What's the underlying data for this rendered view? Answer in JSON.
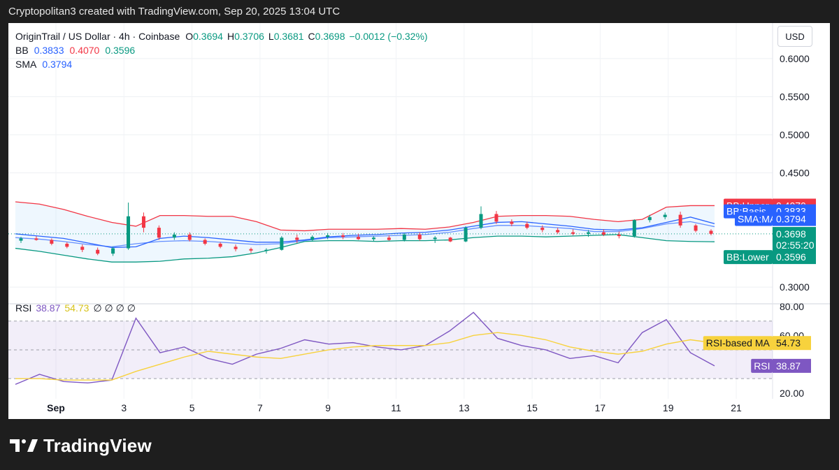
{
  "caption": "Cryptopolitan3 created with TradingView.com, Sep 20, 2025 13:04 UTC",
  "brand": {
    "name": "TradingView"
  },
  "currency_button": "USD",
  "legend": {
    "symbol": "OriginTrail / US Dollar · 4h · Coinbase",
    "ohlc": [
      {
        "k": "O",
        "v": "0.3694"
      },
      {
        "k": "H",
        "v": "0.3706"
      },
      {
        "k": "L",
        "v": "0.3681"
      },
      {
        "k": "C",
        "v": "0.3698"
      }
    ],
    "change": "−0.0012 (−0.32%)",
    "bb_label": "BB",
    "bb_values": [
      "0.3833",
      "0.4070",
      "0.3596"
    ],
    "sma_label": "SMA",
    "sma_value": "0.3794",
    "rsi_label": "RSI",
    "rsi_values": [
      "38.87",
      "54.73"
    ],
    "rsi_extra": "∅ ∅ ∅ ∅"
  },
  "price_tags": [
    {
      "label": "BB:Upper",
      "value": "0.4070",
      "color": "#f23645"
    },
    {
      "label": "BB:Basis",
      "value": "0.3833",
      "color": "#2962ff"
    },
    {
      "label": "SMA:MA",
      "value": "0.3794",
      "color": "#2962ff"
    },
    {
      "label": "",
      "value": "0.3698",
      "sub": "02:55:20",
      "color": "#089981"
    },
    {
      "label": "BB:Lower",
      "value": "0.3596",
      "color": "#089981"
    }
  ],
  "rsi_tags": [
    {
      "label": "RSI-based MA",
      "value": "54.73",
      "color": "#f7d23d",
      "text": "#131722"
    },
    {
      "label": "RSI",
      "value": "38.87",
      "color": "#7e57c2",
      "text": "#ffffff"
    }
  ],
  "colors": {
    "up": "#089981",
    "down": "#f23645",
    "bb_upper": "#f23645",
    "bb_basis": "#2962ff",
    "bb_lower": "#089981",
    "sma": "#2962ff",
    "rsi": "#7e57c2",
    "rsi_ma": "#f7d23d"
  },
  "chart_data": {
    "type": "candlestick",
    "price_axis": {
      "ticks": [
        "0.6000",
        "0.5500",
        "0.5000",
        "0.4500",
        "0.3000"
      ],
      "range": [
        0.28,
        0.61
      ]
    },
    "rsi_axis": {
      "ticks": [
        "80.00",
        "60.00",
        "20.00"
      ],
      "range": [
        16,
        82
      ],
      "bands": [
        70,
        50,
        30
      ]
    },
    "x_axis": {
      "ticks": [
        "Sep",
        "3",
        "5",
        "7",
        "9",
        "11",
        "13",
        "15",
        "17",
        "19",
        "21"
      ]
    },
    "series": [
      {
        "name": "BB:Upper",
        "points": [
          [
            0,
            0.412
          ],
          [
            1,
            0.409
          ],
          [
            2,
            0.402
          ],
          [
            3,
            0.393
          ],
          [
            4,
            0.385
          ],
          [
            5,
            0.38
          ],
          [
            6,
            0.394
          ],
          [
            7,
            0.394
          ],
          [
            8,
            0.393
          ],
          [
            9,
            0.393
          ],
          [
            10,
            0.386
          ],
          [
            11,
            0.375
          ],
          [
            12,
            0.374
          ],
          [
            13,
            0.376
          ],
          [
            14,
            0.376
          ],
          [
            15,
            0.376
          ],
          [
            16,
            0.377
          ],
          [
            17,
            0.376
          ],
          [
            18,
            0.379
          ],
          [
            19,
            0.385
          ],
          [
            20,
            0.393
          ],
          [
            21,
            0.394
          ],
          [
            22,
            0.394
          ],
          [
            23,
            0.393
          ],
          [
            24,
            0.389
          ],
          [
            25,
            0.386
          ],
          [
            26,
            0.389
          ],
          [
            27,
            0.405
          ],
          [
            28,
            0.407
          ],
          [
            29,
            0.407
          ]
        ]
      },
      {
        "name": "BB:Basis",
        "points": [
          [
            0,
            0.37
          ],
          [
            1,
            0.367
          ],
          [
            2,
            0.364
          ],
          [
            3,
            0.358
          ],
          [
            4,
            0.352
          ],
          [
            5,
            0.353
          ],
          [
            6,
            0.364
          ],
          [
            7,
            0.367
          ],
          [
            8,
            0.365
          ],
          [
            9,
            0.362
          ],
          [
            10,
            0.359
          ],
          [
            11,
            0.359
          ],
          [
            12,
            0.362
          ],
          [
            13,
            0.366
          ],
          [
            14,
            0.368
          ],
          [
            15,
            0.369
          ],
          [
            16,
            0.371
          ],
          [
            17,
            0.372
          ],
          [
            18,
            0.375
          ],
          [
            19,
            0.38
          ],
          [
            20,
            0.385
          ],
          [
            21,
            0.386
          ],
          [
            22,
            0.383
          ],
          [
            23,
            0.38
          ],
          [
            24,
            0.376
          ],
          [
            25,
            0.375
          ],
          [
            26,
            0.378
          ],
          [
            27,
            0.385
          ],
          [
            28,
            0.392
          ],
          [
            29,
            0.3833
          ]
        ]
      },
      {
        "name": "BB:Lower",
        "points": [
          [
            0,
            0.351
          ],
          [
            1,
            0.347
          ],
          [
            2,
            0.342
          ],
          [
            3,
            0.337
          ],
          [
            4,
            0.333
          ],
          [
            5,
            0.333
          ],
          [
            6,
            0.334
          ],
          [
            7,
            0.337
          ],
          [
            8,
            0.338
          ],
          [
            9,
            0.34
          ],
          [
            10,
            0.345
          ],
          [
            11,
            0.352
          ],
          [
            12,
            0.36
          ],
          [
            13,
            0.361
          ],
          [
            14,
            0.361
          ],
          [
            15,
            0.36
          ],
          [
            16,
            0.361
          ],
          [
            17,
            0.361
          ],
          [
            18,
            0.362
          ],
          [
            19,
            0.365
          ],
          [
            20,
            0.367
          ],
          [
            21,
            0.367
          ],
          [
            22,
            0.366
          ],
          [
            23,
            0.367
          ],
          [
            24,
            0.368
          ],
          [
            25,
            0.369
          ],
          [
            26,
            0.365
          ],
          [
            27,
            0.361
          ],
          [
            28,
            0.36
          ],
          [
            29,
            0.3596
          ]
        ]
      },
      {
        "name": "SMA:MA",
        "points": [
          [
            0,
            0.365
          ],
          [
            1,
            0.363
          ],
          [
            2,
            0.36
          ],
          [
            3,
            0.356
          ],
          [
            4,
            0.353
          ],
          [
            5,
            0.357
          ],
          [
            6,
            0.36
          ],
          [
            7,
            0.361
          ],
          [
            8,
            0.36
          ],
          [
            9,
            0.358
          ],
          [
            10,
            0.356
          ],
          [
            11,
            0.357
          ],
          [
            12,
            0.361
          ],
          [
            13,
            0.365
          ],
          [
            14,
            0.366
          ],
          [
            15,
            0.367
          ],
          [
            16,
            0.368
          ],
          [
            17,
            0.369
          ],
          [
            18,
            0.372
          ],
          [
            19,
            0.377
          ],
          [
            20,
            0.381
          ],
          [
            21,
            0.381
          ],
          [
            22,
            0.379
          ],
          [
            23,
            0.377
          ],
          [
            24,
            0.373
          ],
          [
            25,
            0.373
          ],
          [
            26,
            0.377
          ],
          [
            27,
            0.383
          ],
          [
            28,
            0.386
          ],
          [
            29,
            0.3794
          ]
        ]
      },
      {
        "name": "RSI",
        "points": [
          [
            0,
            26
          ],
          [
            1,
            33
          ],
          [
            2,
            28
          ],
          [
            3,
            27
          ],
          [
            4,
            29
          ],
          [
            5,
            72
          ],
          [
            6,
            48
          ],
          [
            7,
            52
          ],
          [
            8,
            44
          ],
          [
            9,
            40
          ],
          [
            10,
            47
          ],
          [
            11,
            51
          ],
          [
            12,
            57
          ],
          [
            13,
            54
          ],
          [
            14,
            55
          ],
          [
            15,
            52
          ],
          [
            16,
            50
          ],
          [
            17,
            53
          ],
          [
            18,
            63
          ],
          [
            19,
            76
          ],
          [
            20,
            58
          ],
          [
            21,
            53
          ],
          [
            22,
            50
          ],
          [
            23,
            44
          ],
          [
            24,
            46
          ],
          [
            25,
            41
          ],
          [
            26,
            62
          ],
          [
            27,
            71
          ],
          [
            28,
            48
          ],
          [
            29,
            38.87
          ]
        ]
      },
      {
        "name": "RSI-based MA",
        "points": [
          [
            0,
            30
          ],
          [
            1,
            30
          ],
          [
            2,
            29
          ],
          [
            3,
            29
          ],
          [
            4,
            29
          ],
          [
            5,
            35
          ],
          [
            6,
            40
          ],
          [
            7,
            45
          ],
          [
            8,
            49
          ],
          [
            9,
            47
          ],
          [
            10,
            45
          ],
          [
            11,
            44
          ],
          [
            12,
            47
          ],
          [
            13,
            50
          ],
          [
            14,
            52
          ],
          [
            15,
            53
          ],
          [
            16,
            53
          ],
          [
            17,
            53
          ],
          [
            18,
            55
          ],
          [
            19,
            60
          ],
          [
            20,
            62
          ],
          [
            21,
            60
          ],
          [
            22,
            57
          ],
          [
            23,
            52
          ],
          [
            24,
            49
          ],
          [
            25,
            47
          ],
          [
            26,
            49
          ],
          [
            27,
            54
          ],
          [
            28,
            57
          ],
          [
            29,
            54.73
          ]
        ]
      }
    ],
    "candles": [
      [
        0.361,
        0.366,
        0.358,
        0.364
      ],
      [
        0.364,
        0.367,
        0.361,
        0.362
      ],
      [
        0.362,
        0.364,
        0.355,
        0.357
      ],
      [
        0.357,
        0.359,
        0.351,
        0.353
      ],
      [
        0.353,
        0.356,
        0.346,
        0.349
      ],
      [
        0.349,
        0.352,
        0.342,
        0.344
      ],
      [
        0.344,
        0.353,
        0.341,
        0.351
      ],
      [
        0.351,
        0.411,
        0.349,
        0.393
      ],
      [
        0.393,
        0.398,
        0.372,
        0.378
      ],
      [
        0.378,
        0.381,
        0.362,
        0.365
      ],
      [
        0.365,
        0.372,
        0.362,
        0.369
      ],
      [
        0.369,
        0.372,
        0.36,
        0.362
      ],
      [
        0.362,
        0.364,
        0.355,
        0.357
      ],
      [
        0.357,
        0.359,
        0.351,
        0.353
      ],
      [
        0.353,
        0.356,
        0.347,
        0.35
      ],
      [
        0.35,
        0.352,
        0.345,
        0.348
      ],
      [
        0.348,
        0.351,
        0.344,
        0.349
      ],
      [
        0.349,
        0.367,
        0.348,
        0.365
      ],
      [
        0.365,
        0.369,
        0.358,
        0.362
      ],
      [
        0.362,
        0.368,
        0.36,
        0.366
      ],
      [
        0.366,
        0.371,
        0.363,
        0.368
      ],
      [
        0.368,
        0.371,
        0.363,
        0.366
      ],
      [
        0.366,
        0.37,
        0.362,
        0.363
      ],
      [
        0.363,
        0.367,
        0.36,
        0.365
      ],
      [
        0.365,
        0.368,
        0.361,
        0.362
      ],
      [
        0.362,
        0.371,
        0.36,
        0.369
      ],
      [
        0.369,
        0.372,
        0.361,
        0.363
      ],
      [
        0.363,
        0.367,
        0.358,
        0.365
      ],
      [
        0.365,
        0.366,
        0.359,
        0.36
      ],
      [
        0.36,
        0.38,
        0.359,
        0.378
      ],
      [
        0.378,
        0.406,
        0.376,
        0.396
      ],
      [
        0.396,
        0.4,
        0.383,
        0.386
      ],
      [
        0.386,
        0.389,
        0.38,
        0.383
      ],
      [
        0.383,
        0.386,
        0.376,
        0.378
      ],
      [
        0.378,
        0.381,
        0.372,
        0.375
      ],
      [
        0.375,
        0.378,
        0.37,
        0.372
      ],
      [
        0.372,
        0.376,
        0.368,
        0.37
      ],
      [
        0.37,
        0.375,
        0.366,
        0.372
      ],
      [
        0.372,
        0.376,
        0.367,
        0.369
      ],
      [
        0.369,
        0.373,
        0.364,
        0.367
      ],
      [
        0.367,
        0.389,
        0.365,
        0.388
      ],
      [
        0.388,
        0.395,
        0.385,
        0.392
      ],
      [
        0.392,
        0.398,
        0.389,
        0.395
      ],
      [
        0.395,
        0.399,
        0.378,
        0.381
      ],
      [
        0.381,
        0.383,
        0.372,
        0.374
      ],
      [
        0.374,
        0.376,
        0.368,
        0.37
      ]
    ]
  }
}
